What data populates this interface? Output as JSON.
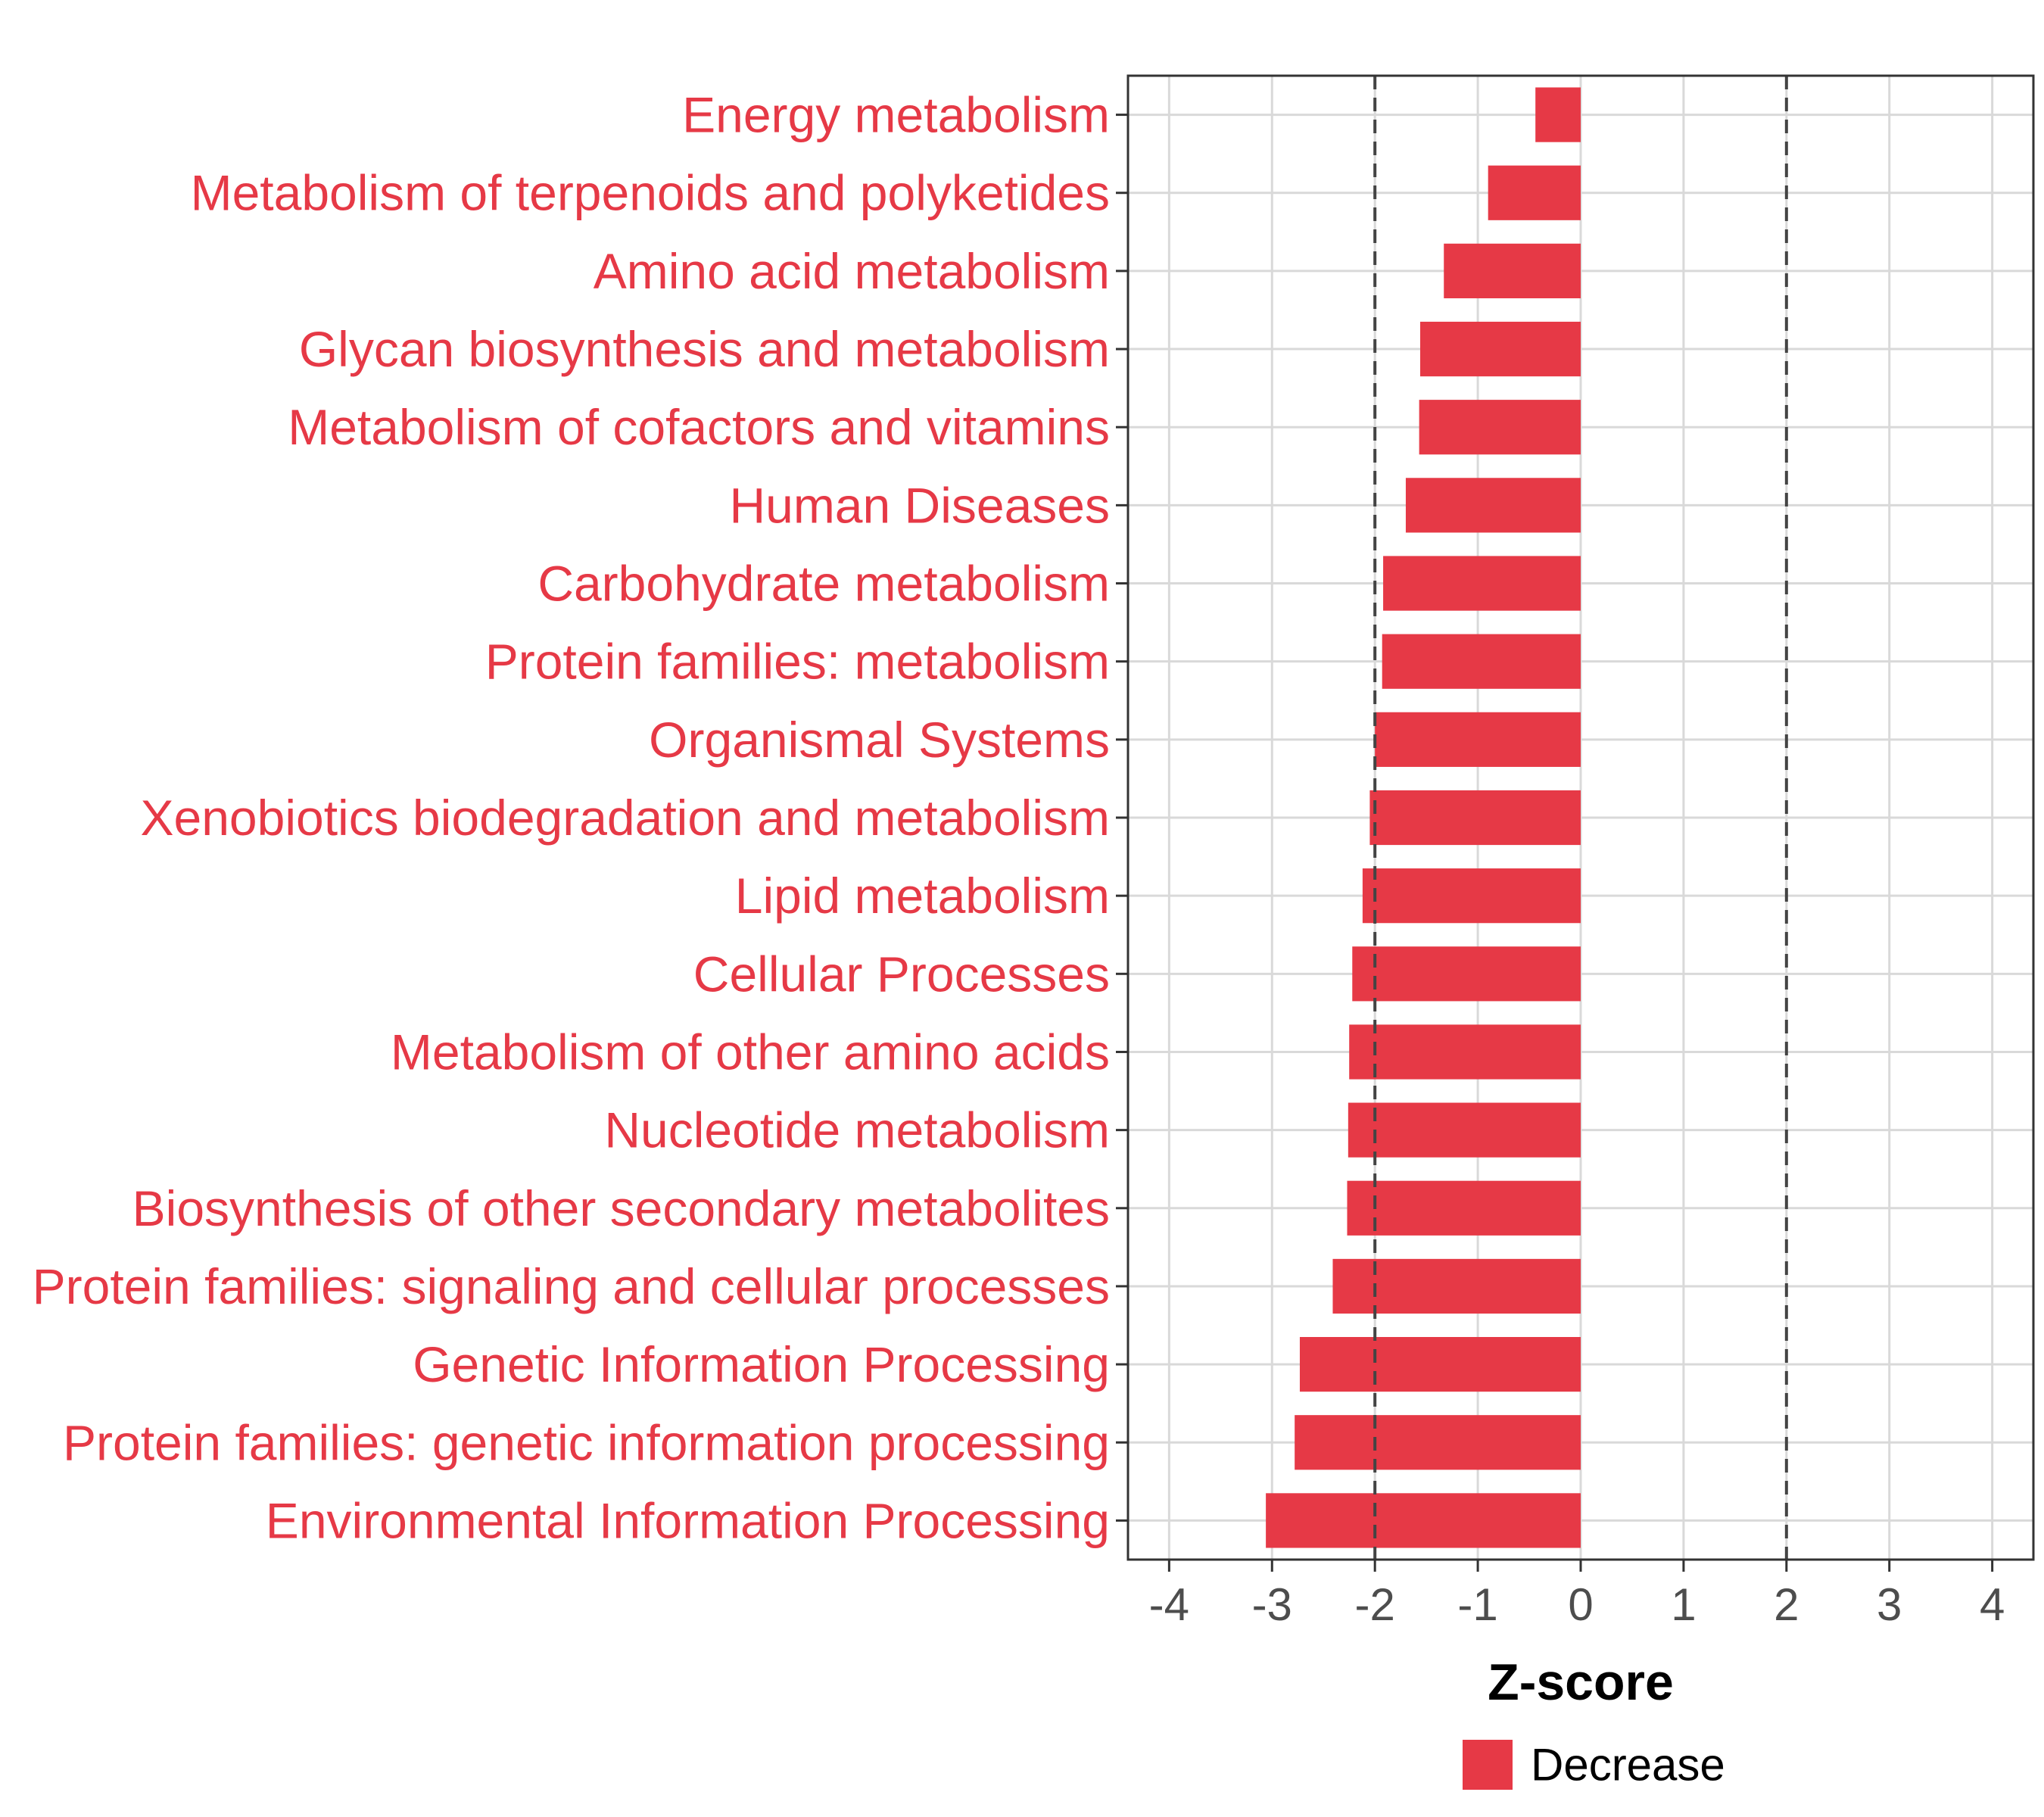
{
  "chart_data": {
    "type": "bar",
    "orientation": "horizontal",
    "categories": [
      "Energy metabolism",
      "Metabolism of terpenoids and polyketides",
      "Amino acid metabolism",
      "Glycan biosynthesis and metabolism",
      "Metabolism of cofactors and vitamins",
      "Human Diseases",
      "Carbohydrate metabolism",
      "Protein families: metabolism",
      "Organismal Systems",
      "Xenobiotics biodegradation and metabolism",
      "Lipid metabolism",
      "Cellular Processes",
      "Metabolism of other amino acids",
      "Nucleotide metabolism",
      "Biosynthesis of other secondary metabolites",
      "Protein families: signaling and cellular processes",
      "Genetic Information Processing",
      "Protein families: genetic information processing",
      "Environmental Information Processing"
    ],
    "series": [
      {
        "name": "Decrease",
        "color": "#E63946",
        "values": [
          -0.44,
          -0.9,
          -1.33,
          -1.56,
          -1.57,
          -1.7,
          -1.92,
          -1.93,
          -2.0,
          -2.05,
          -2.12,
          -2.22,
          -2.25,
          -2.26,
          -2.27,
          -2.41,
          -2.73,
          -2.78,
          -3.06
        ]
      }
    ],
    "xlabel": "Z-score",
    "ylabel": "",
    "xlim": [
      -4.4,
      4.4
    ],
    "xticks": [
      -4,
      -3,
      -2,
      -1,
      0,
      1,
      2,
      3,
      4
    ],
    "xtick_labels": [
      "-4",
      "-3",
      "-2",
      "-1",
      "0",
      "1",
      "2",
      "3",
      "4"
    ],
    "reference_lines": [
      -2,
      2
    ],
    "grid": true,
    "legend": {
      "position": "bottom",
      "entries": [
        {
          "label": "Decrease",
          "color": "#E63946"
        }
      ]
    },
    "label_color": "#E63946"
  }
}
